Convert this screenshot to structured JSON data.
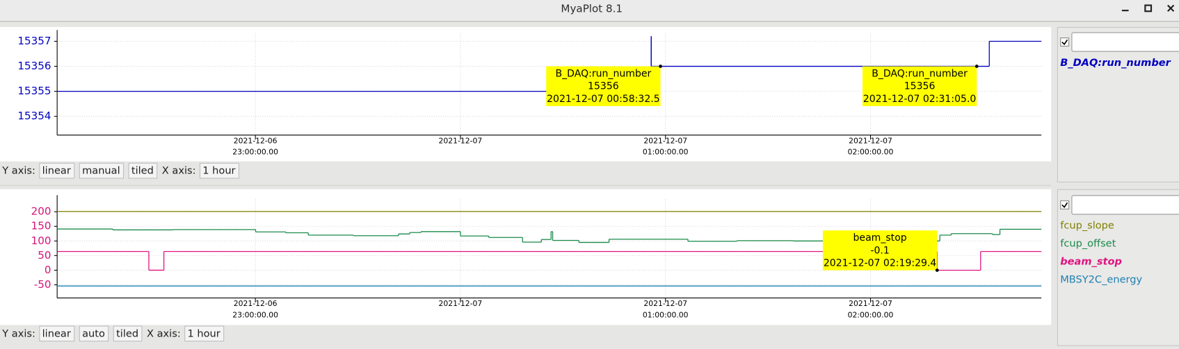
{
  "window": {
    "title": "MyaPlot 8.1"
  },
  "chart_data": [
    {
      "type": "step",
      "axis_color": "#0000c0",
      "grid": true,
      "xlim": [
        "2021-12-06 22:02:00",
        "2021-12-07 02:50:00"
      ],
      "xticks": [
        {
          "value": "2021-12-06 23:00:00",
          "label": [
            "2021-12-06",
            "23:00:00.00"
          ]
        },
        {
          "value": "2021-12-07 00:00:00",
          "label": [
            "2021-12-07"
          ]
        },
        {
          "value": "2021-12-07 01:00:00",
          "label": [
            "2021-12-07",
            "01:00:00.00"
          ]
        },
        {
          "value": "2021-12-07 02:00:00",
          "label": [
            "2021-12-07",
            "02:00:00.00"
          ]
        }
      ],
      "ylim": [
        15353.25,
        15357.3
      ],
      "yticks": [
        15354,
        15355,
        15356,
        15357
      ],
      "series": [
        {
          "name": "B_DAQ:run_number",
          "color": "#0000c0",
          "selected": true,
          "x": [
            "2021-12-06 22:02:00",
            "2021-12-07 00:55:49",
            "2021-12-07 00:55:50",
            "2021-12-07 02:34:45"
          ],
          "values": [
            15355,
            15357.2,
            15356,
            15357
          ]
        }
      ],
      "annotations": [
        {
          "name": "B_DAQ:run_number",
          "value": 15356,
          "time": "2021-12-07 00:58:32.5"
        },
        {
          "name": "B_DAQ:run_number",
          "value": 15356,
          "time": "2021-12-07 02:31:05.0"
        }
      ]
    },
    {
      "type": "step",
      "axis_color": "#d4147a",
      "grid": true,
      "xlim": [
        "2021-12-06 22:02:00",
        "2021-12-07 02:50:00"
      ],
      "xticks": [
        {
          "value": "2021-12-06 23:00:00",
          "label": [
            "2021-12-06",
            "23:00:00.00"
          ]
        },
        {
          "value": "2021-12-07 00:00:00",
          "label": [
            "2021-12-07"
          ]
        },
        {
          "value": "2021-12-07 01:00:00",
          "label": [
            "2021-12-07",
            "01:00:00.00"
          ]
        },
        {
          "value": "2021-12-07 02:00:00",
          "label": [
            "2021-12-07",
            "02:00:00.00"
          ]
        }
      ],
      "ylim": [
        -95,
        244
      ],
      "yticks": [
        -50,
        0,
        50,
        100,
        150,
        200
      ],
      "series": [
        {
          "name": "fcup_slope",
          "color": "#808000",
          "selected": false,
          "x": [
            "2021-12-06 22:02:00"
          ],
          "values": [
            201
          ]
        },
        {
          "name": "fcup_offset",
          "color": "#1a8a4a",
          "selected": false,
          "x": [
            "2021-12-06 22:02:00",
            "2021-12-06 22:18:18",
            "2021-12-06 22:35:53",
            "2021-12-06 23:00:05",
            "2021-12-06 23:08:53",
            "2021-12-06 23:15:29",
            "2021-12-06 23:28:41",
            "2021-12-06 23:41:53",
            "2021-12-06 23:45:11",
            "2021-12-06 23:48:29",
            "2021-12-07 00:00:00",
            "2021-12-07 00:08:17",
            "2021-12-07 00:18:11",
            "2021-12-07 00:23:41",
            "2021-12-07 00:26:32",
            "2021-12-07 00:27:00",
            "2021-12-07 00:34:40",
            "2021-12-07 00:43:29",
            "2021-12-07 01:06:35",
            "2021-12-07 01:20:53",
            "2021-12-07 01:37:23",
            "2021-12-07 02:20:17",
            "2021-12-07 02:23:35",
            "2021-12-07 02:35:40",
            "2021-12-07 02:37:52"
          ],
          "values": [
            141,
            138,
            139,
            131,
            128,
            120,
            118,
            124,
            129,
            132,
            117,
            112,
            96,
            105,
            132,
            102,
            95,
            106,
            99,
            101,
            100,
            120,
            125,
            122,
            140
          ]
        },
        {
          "name": "beam_stop",
          "color": "#e0147f",
          "selected": true,
          "x": [
            "2021-12-06 22:02:00",
            "2021-12-06 22:28:50",
            "2021-12-06 22:33:14",
            "2021-12-07 02:19:29",
            "2021-12-07 02:32:13"
          ],
          "values": [
            64,
            0,
            64,
            -0.1,
            64
          ]
        },
        {
          "name": "MBSY2C_energy",
          "color": "#2080b0",
          "selected": false,
          "x": [
            "2021-12-06 22:02:00"
          ],
          "values": [
            -54
          ]
        }
      ],
      "annotations": [
        {
          "name": "beam_stop",
          "value": -0.1,
          "time": "2021-12-07 02:19:29.4"
        }
      ]
    }
  ],
  "panels": [
    {
      "y_axis_label": "Y axis:",
      "y_scale": "linear",
      "y_range": "manual",
      "layout": "tiled",
      "x_axis_label": "X axis:",
      "x_span": "1 hour"
    },
    {
      "y_axis_label": "Y axis:",
      "y_scale": "linear",
      "y_range": "auto",
      "layout": "tiled",
      "x_axis_label": "X axis:",
      "x_span": "1 hour"
    }
  ]
}
